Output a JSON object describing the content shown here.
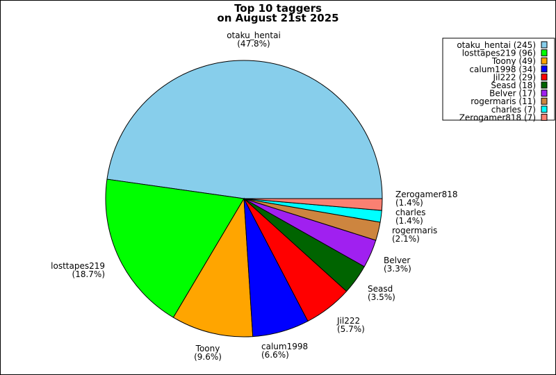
{
  "chart_data": {
    "type": "pie",
    "title": [
      "Top 10 taggers",
      "on August 21st 2025"
    ],
    "start_angle": "3 o'clock, counterclockwise",
    "legend_placement": "top-right",
    "slices": [
      {
        "name": "otaku_hentai",
        "value": 245,
        "pct": "47.8%",
        "color": "#87ceeb"
      },
      {
        "name": "losttapes219",
        "value": 96,
        "pct": "18.7%",
        "color": "#00ff00"
      },
      {
        "name": "Toony",
        "value": 49,
        "pct": "9.6%",
        "color": "#ffa500"
      },
      {
        "name": "calum1998",
        "value": 34,
        "pct": "6.6%",
        "color": "#0000ff"
      },
      {
        "name": "Jil222",
        "value": 29,
        "pct": "5.7%",
        "color": "#ff0000"
      },
      {
        "name": "Seasd",
        "value": 18,
        "pct": "3.5%",
        "color": "#006400"
      },
      {
        "name": "Belver",
        "value": 17,
        "pct": "3.3%",
        "color": "#a020f0"
      },
      {
        "name": "rogermaris",
        "value": 11,
        "pct": "2.1%",
        "color": "#cd853f"
      },
      {
        "name": "charles",
        "value": 7,
        "pct": "1.4%",
        "color": "#00ffff"
      },
      {
        "name": "Zerogamer818",
        "value": 7,
        "pct": "1.4%",
        "color": "#fa8072"
      }
    ]
  }
}
